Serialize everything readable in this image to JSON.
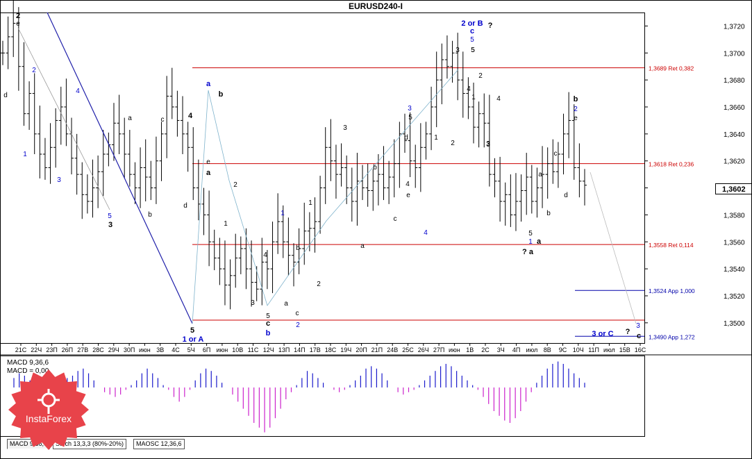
{
  "window": {
    "title": "EURUSD240-I"
  },
  "current_price": "1,3602",
  "tabs": [
    "MACD 9,36,6",
    "Stoch 13,3,3 (80%-20%)",
    "MAOSC 12,36,6"
  ],
  "active_tab": 0,
  "macd_labels": {
    "line1": "MACD 9,36,6",
    "line2": "MACD = 0,00"
  },
  "logo": {
    "text": "InstaForex",
    "color": "#e8434a",
    "icon": "instaforex-logo-icon"
  },
  "chart_data": {
    "type": "candlestick",
    "title": "EURUSD240-I",
    "ylim": [
      1.3485,
      1.373
    ],
    "y_ticks": [
      "1,3720",
      "1,3700",
      "1,3680",
      "1,3660",
      "1,3640",
      "1,3620",
      "1,3600",
      "1,3580",
      "1,3560",
      "1,3540",
      "1,3520",
      "1,3500"
    ],
    "x_ticks": [
      "21C",
      "22Ч",
      "23П",
      "26П",
      "27В",
      "28С",
      "29Ч",
      "30П",
      "июн",
      "3В",
      "4С",
      "5Ч",
      "6П",
      "июн",
      "10В",
      "11С",
      "12Ч",
      "13П",
      "14П",
      "17В",
      "18С",
      "19Ч",
      "20П",
      "21П",
      "24В",
      "25С",
      "26Ч",
      "27П",
      "июн",
      "1В",
      "2С",
      "3Ч",
      "4П",
      "июл",
      "8В",
      "9С",
      "10Ч",
      "11П",
      "июл",
      "15В",
      "16С"
    ],
    "close_series": [
      1.37,
      1.3712,
      1.3722,
      1.369,
      1.3655,
      1.367,
      1.364,
      1.3625,
      1.3615,
      1.363,
      1.365,
      1.366,
      1.364,
      1.3622,
      1.361,
      1.3595,
      1.359,
      1.36,
      1.3612,
      1.3625,
      1.3632,
      1.3648,
      1.364,
      1.3625,
      1.361,
      1.36,
      1.3615,
      1.3608,
      1.36,
      1.362,
      1.364,
      1.3668,
      1.366,
      1.365,
      1.364,
      1.363,
      1.36,
      1.3588,
      1.358,
      1.356,
      1.3548,
      1.354,
      1.3528,
      1.3535,
      1.3548,
      1.3555,
      1.354,
      1.353,
      1.3525,
      1.3545,
      1.354,
      1.356,
      1.3575,
      1.356,
      1.355,
      1.3545,
      1.3555,
      1.3568,
      1.357,
      1.3575,
      1.36,
      1.363,
      1.362,
      1.361,
      1.3615,
      1.36,
      1.359,
      1.3605,
      1.36,
      1.3598,
      1.3605,
      1.361,
      1.36,
      1.3608,
      1.3618,
      1.364,
      1.3635,
      1.362,
      1.3615,
      1.363,
      1.364,
      1.366,
      1.368,
      1.3695,
      1.369,
      1.37,
      1.368,
      1.367,
      1.366,
      1.3645,
      1.3655,
      1.3648,
      1.361,
      1.3605,
      1.359,
      1.3595,
      1.358,
      1.359,
      1.3598,
      1.3608,
      1.359,
      1.36,
      1.361,
      1.3618,
      1.3612,
      1.3625,
      1.364,
      1.365,
      1.3615,
      1.3605,
      1.3602
    ],
    "retracement_levels": [
      {
        "value": 1.3689,
        "label": "1,3689 Ret 0,382",
        "color": "#cc0000"
      },
      {
        "value": 1.3618,
        "label": "1,3618 Ret 0,236",
        "color": "#cc0000"
      },
      {
        "value": 1.3558,
        "label": "1,3558 Ret 0,114",
        "color": "#cc0000"
      },
      {
        "value": 1.3524,
        "label": "1,3524 App 1,000",
        "color": "#0000aa"
      },
      {
        "value": 1.349,
        "label": "1,3490 App 1,272",
        "color": "#0000aa"
      },
      {
        "value": 1.3502,
        "label": "",
        "color": "#cc0000"
      }
    ],
    "wave_labels": [
      {
        "text": "2",
        "color": "#000000",
        "bold": true
      },
      {
        "text": "e",
        "color": "#000000"
      },
      {
        "text": "2",
        "color": "#0000cc"
      },
      {
        "text": "d",
        "color": "#000000"
      },
      {
        "text": "1",
        "color": "#0000cc"
      },
      {
        "text": "3",
        "color": "#0000cc"
      },
      {
        "text": "4",
        "color": "#0000cc"
      },
      {
        "text": "a",
        "color": "#000000"
      },
      {
        "text": "c",
        "color": "#000000"
      },
      {
        "text": "4",
        "color": "#000000",
        "bold": true
      },
      {
        "text": "5",
        "color": "#0000cc"
      },
      {
        "text": "3",
        "color": "#000000",
        "bold": true
      },
      {
        "text": "b",
        "color": "#000000"
      },
      {
        "text": "d",
        "color": "#000000"
      },
      {
        "text": "e",
        "color": "#000000"
      },
      {
        "text": "a",
        "color": "#0000cc",
        "bold": true
      },
      {
        "text": "b",
        "color": "#000000",
        "bold": true
      },
      {
        "text": "a",
        "color": "#000000",
        "bold": true
      },
      {
        "text": "2",
        "color": "#000000"
      },
      {
        "text": "1",
        "color": "#000000"
      },
      {
        "text": "5",
        "color": "#000000",
        "bold": true
      },
      {
        "text": "1 or A",
        "color": "#0000cc",
        "bold": true
      },
      {
        "text": "3",
        "color": "#000000"
      },
      {
        "text": "4",
        "color": "#000000"
      },
      {
        "text": "5",
        "color": "#000000"
      },
      {
        "text": "c",
        "color": "#000000",
        "bold": true
      },
      {
        "text": "b",
        "color": "#0000cc",
        "bold": true
      },
      {
        "text": "1",
        "color": "#0000cc"
      },
      {
        "text": "a",
        "color": "#000000"
      },
      {
        "text": "b",
        "color": "#000000"
      },
      {
        "text": "c",
        "color": "#000000"
      },
      {
        "text": "2",
        "color": "#0000cc"
      },
      {
        "text": "1",
        "color": "#000000"
      },
      {
        "text": "2",
        "color": "#000000"
      },
      {
        "text": "3",
        "color": "#000000"
      },
      {
        "text": "a",
        "color": "#000000"
      },
      {
        "text": "b",
        "color": "#000000"
      },
      {
        "text": "c",
        "color": "#000000"
      },
      {
        "text": "d",
        "color": "#000000"
      },
      {
        "text": "e",
        "color": "#000000"
      },
      {
        "text": "4",
        "color": "#000000"
      },
      {
        "text": "5",
        "color": "#000000"
      },
      {
        "text": "3",
        "color": "#0000cc"
      },
      {
        "text": "4",
        "color": "#0000cc"
      },
      {
        "text": "1",
        "color": "#000000"
      },
      {
        "text": "2",
        "color": "#000000"
      },
      {
        "text": "3",
        "color": "#000000"
      },
      {
        "text": "5",
        "color": "#000000"
      },
      {
        "text": "2 or B",
        "color": "#0000cc",
        "bold": true
      },
      {
        "text": "?",
        "color": "#000000",
        "bold": true
      },
      {
        "text": "c",
        "color": "#0000cc",
        "bold": true
      },
      {
        "text": "5",
        "color": "#0000cc"
      },
      {
        "text": "3",
        "color": "#000000"
      },
      {
        "text": "5",
        "color": "#000000"
      },
      {
        "text": "4",
        "color": "#000000"
      },
      {
        "text": "2",
        "color": "#000000"
      },
      {
        "text": "1",
        "color": "#000000"
      },
      {
        "text": "4",
        "color": "#000000"
      },
      {
        "text": "3",
        "color": "#000000"
      },
      {
        "text": "5",
        "color": "#000000"
      },
      {
        "text": "1",
        "color": "#0000cc"
      },
      {
        "text": "a",
        "color": "#000000",
        "bold": true
      },
      {
        "text": "? a",
        "color": "#000000",
        "bold": true
      },
      {
        "text": "a",
        "color": "#000000"
      },
      {
        "text": "b",
        "color": "#000000"
      },
      {
        "text": "c",
        "color": "#000000"
      },
      {
        "text": "d",
        "color": "#000000"
      },
      {
        "text": "e",
        "color": "#000000"
      },
      {
        "text": "2",
        "color": "#0000cc"
      },
      {
        "text": "b",
        "color": "#000000",
        "bold": true
      },
      {
        "text": "3 or C",
        "color": "#0000cc",
        "bold": true
      },
      {
        "text": "?",
        "color": "#000000",
        "bold": true
      },
      {
        "text": "3",
        "color": "#0000cc"
      },
      {
        "text": "c",
        "color": "#000000",
        "bold": true
      }
    ],
    "macd_hist": [
      0.4,
      0.6,
      0.5,
      0.3,
      0.1,
      -0.2,
      -0.3,
      -0.2,
      0.1,
      0.3,
      0.4,
      0.5,
      0.7,
      0.8,
      0.6,
      0.3,
      0.0,
      -0.2,
      -0.3,
      -0.4,
      -0.3,
      -0.1,
      0.1,
      0.3,
      0.6,
      0.8,
      0.6,
      0.4,
      0.1,
      -0.1,
      -0.4,
      -0.6,
      -0.4,
      -0.1,
      0.3,
      0.6,
      0.8,
      0.7,
      0.5,
      0.2,
      0.0,
      -0.3,
      -0.6,
      -0.9,
      -1.2,
      -1.5,
      -1.7,
      -1.9,
      -1.7,
      -1.3,
      -0.9,
      -0.5,
      -0.2,
      0.1,
      0.4,
      0.7,
      0.6,
      0.4,
      0.2,
      0.0,
      -0.1,
      -0.2,
      -0.1,
      0.1,
      0.3,
      0.5,
      0.8,
      0.9,
      0.8,
      0.6,
      0.3,
      0.0,
      -0.2,
      -0.3,
      -0.2,
      -0.1,
      0.1,
      0.3,
      0.5,
      0.7,
      0.9,
      1.0,
      0.9,
      0.7,
      0.5,
      0.3,
      0.1,
      -0.1,
      -0.4,
      -0.7,
      -1.0,
      -1.2,
      -1.4,
      -1.5,
      -1.3,
      -1.0,
      -0.6,
      -0.2,
      0.2,
      0.5,
      0.8,
      1.0,
      1.1,
      1.0,
      0.8,
      0.6,
      0.4,
      0.2
    ]
  }
}
